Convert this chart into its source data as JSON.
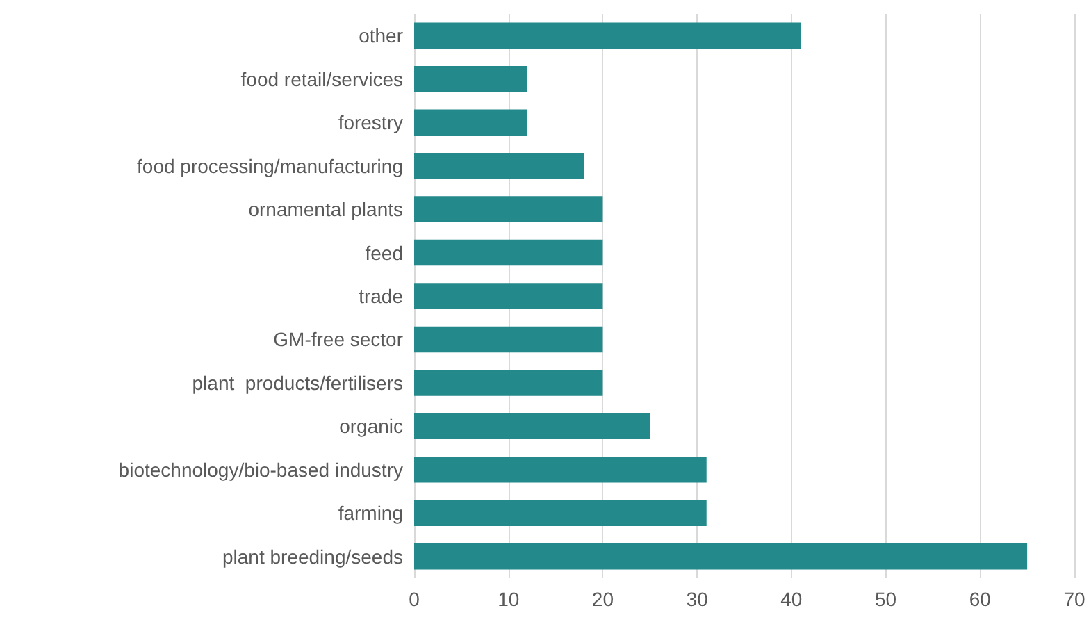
{
  "chart_data": {
    "type": "bar",
    "orientation": "horizontal",
    "categories": [
      "other",
      "food retail/services",
      "forestry",
      "food processing/manufacturing",
      "ornamental plants",
      "feed",
      "trade",
      "GM-free sector",
      "plant  products/fertilisers",
      "organic",
      "biotechnology/bio-based industry",
      "farming",
      "plant breeding/seeds"
    ],
    "values": [
      41,
      12,
      12,
      18,
      20,
      20,
      20,
      20,
      20,
      25,
      31,
      31,
      65
    ],
    "color": "#23898a",
    "xlim": [
      0,
      70
    ],
    "xticks": [
      0,
      10,
      20,
      30,
      40,
      50,
      60,
      70
    ],
    "grid": "x"
  }
}
